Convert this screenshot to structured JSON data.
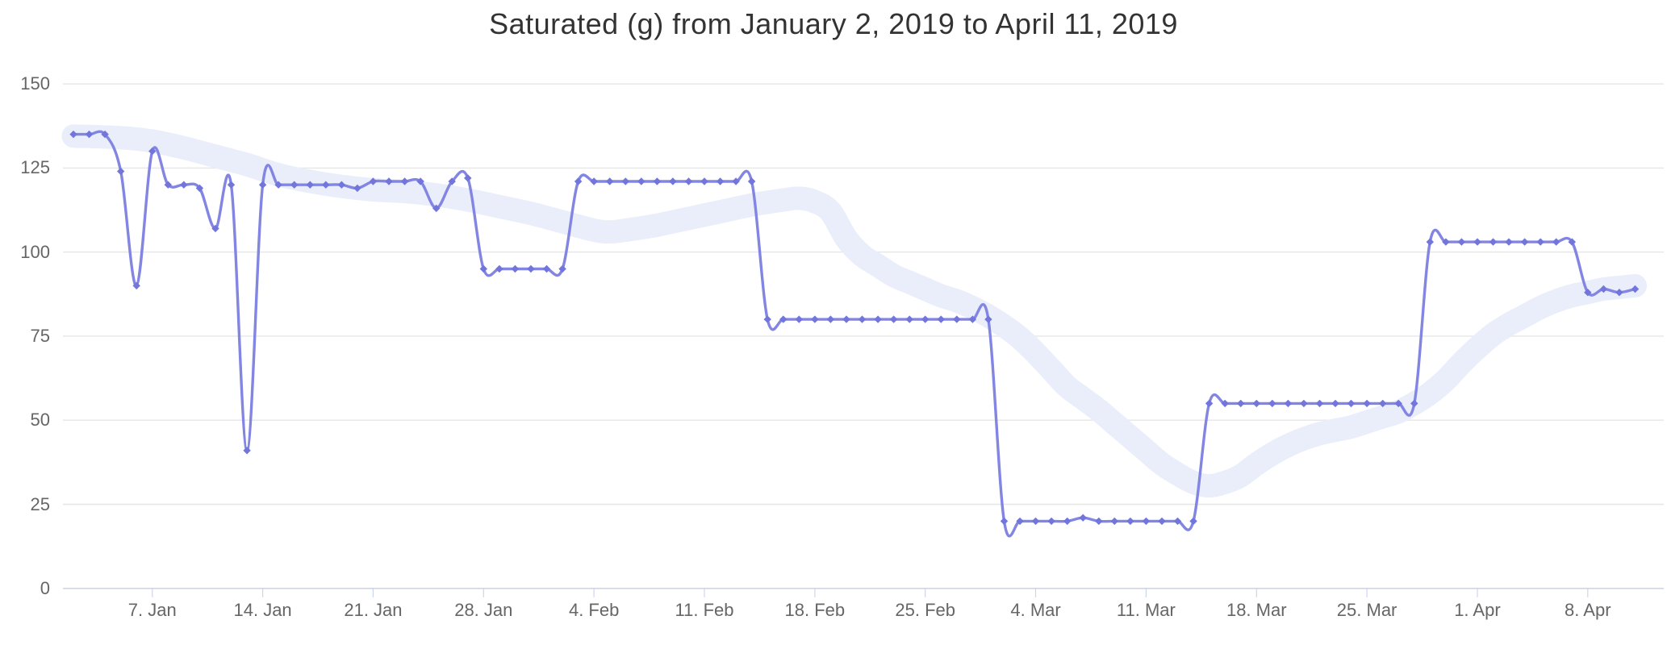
{
  "title": "Saturated (g) from January 2, 2019 to April 11, 2019",
  "colors": {
    "background": "#ffffff",
    "title_text": "#333333",
    "axis_label_text": "#666666",
    "gridline": "#e6e6e6",
    "axis_line": "#ccd6eb",
    "series_line": "#8285e2",
    "series_marker": "#7276dc",
    "trend_band": "#e9eefa"
  },
  "chart_data": {
    "type": "line",
    "title": "Saturated (g) from January 2, 2019 to April 11, 2019",
    "legend": "none",
    "x_axis": {
      "label": "",
      "start_date": "2019-01-02",
      "end_date": "2019-04-11",
      "frequency": "daily",
      "num_points": 100,
      "tick_labels": [
        "7. Jan",
        "14. Jan",
        "21. Jan",
        "28. Jan",
        "4. Feb",
        "11. Feb",
        "18. Feb",
        "25. Feb",
        "4. Mar",
        "11. Mar",
        "18. Mar",
        "25. Mar",
        "1. Apr",
        "8. Apr"
      ],
      "tick_day_indices": [
        5,
        12,
        19,
        26,
        33,
        40,
        47,
        54,
        61,
        68,
        75,
        82,
        89,
        96
      ]
    },
    "y_axis": {
      "label": "",
      "min": 0,
      "max": 150,
      "tick_values": [
        0,
        25,
        50,
        75,
        100,
        125,
        150
      ],
      "grid": true
    },
    "series": [
      {
        "name": "Saturated (g)",
        "type": "spline",
        "color": "#8285e2",
        "marker_shape": "diamond",
        "marker_color": "#7276dc",
        "values": [
          135,
          135,
          135,
          124,
          90,
          130,
          120,
          120,
          119,
          107,
          120,
          41,
          120,
          120,
          120,
          120,
          120,
          120,
          119,
          121,
          121,
          121,
          121,
          113,
          121,
          122,
          95,
          95,
          95,
          95,
          95,
          95,
          121,
          121,
          121,
          121,
          121,
          121,
          121,
          121,
          121,
          121,
          121,
          121,
          80,
          80,
          80,
          80,
          80,
          80,
          80,
          80,
          80,
          80,
          80,
          80,
          80,
          80,
          80,
          20,
          20,
          20,
          20,
          20,
          21,
          20,
          20,
          20,
          20,
          20,
          20,
          20,
          55,
          55,
          55,
          55,
          55,
          55,
          55,
          55,
          55,
          55,
          55,
          55,
          55,
          55,
          103,
          103,
          103,
          103,
          103,
          103,
          103,
          103,
          103,
          103,
          88,
          89,
          88,
          89
        ]
      },
      {
        "name": "trend-band",
        "type": "smoothed-band",
        "color": "#e9eefa",
        "points": [
          [
            0,
            134.5
          ],
          [
            3,
            134
          ],
          [
            5,
            133
          ],
          [
            7,
            131
          ],
          [
            9,
            128.5
          ],
          [
            11,
            126
          ],
          [
            13,
            123
          ],
          [
            15,
            121
          ],
          [
            17,
            119.5
          ],
          [
            19,
            118.5
          ],
          [
            21,
            118
          ],
          [
            23,
            117
          ],
          [
            25,
            115.5
          ],
          [
            27,
            113.5
          ],
          [
            29,
            111.5
          ],
          [
            31,
            109
          ],
          [
            33,
            106.5
          ],
          [
            34,
            106
          ],
          [
            35,
            106.5
          ],
          [
            37,
            108
          ],
          [
            39,
            110
          ],
          [
            41,
            112
          ],
          [
            43,
            114
          ],
          [
            45,
            115.5
          ],
          [
            46,
            116
          ],
          [
            47,
            115
          ],
          [
            48,
            112
          ],
          [
            49,
            104
          ],
          [
            50,
            99
          ],
          [
            51,
            96
          ],
          [
            52,
            93
          ],
          [
            53,
            91
          ],
          [
            54,
            89
          ],
          [
            55,
            87
          ],
          [
            56,
            85.5
          ],
          [
            57,
            83.5
          ],
          [
            58,
            81
          ],
          [
            59,
            78
          ],
          [
            60,
            74.5
          ],
          [
            61,
            70
          ],
          [
            62,
            65
          ],
          [
            63,
            60
          ],
          [
            64,
            56.5
          ],
          [
            65,
            53
          ],
          [
            66,
            49
          ],
          [
            67,
            45
          ],
          [
            68,
            41
          ],
          [
            69,
            37
          ],
          [
            70,
            34
          ],
          [
            71,
            31.5
          ],
          [
            72,
            30.5
          ],
          [
            73,
            31.5
          ],
          [
            74,
            33.5
          ],
          [
            75,
            37
          ],
          [
            76,
            40
          ],
          [
            77,
            42.5
          ],
          [
            78,
            44.5
          ],
          [
            79,
            46
          ],
          [
            80,
            47
          ],
          [
            81,
            48
          ],
          [
            82,
            49.5
          ],
          [
            83,
            51
          ],
          [
            84,
            52.5
          ],
          [
            85,
            55
          ],
          [
            86,
            58
          ],
          [
            87,
            62
          ],
          [
            88,
            67
          ],
          [
            89,
            71.5
          ],
          [
            90,
            75.5
          ],
          [
            91,
            78.5
          ],
          [
            92,
            81
          ],
          [
            93,
            83.5
          ],
          [
            94,
            85.5
          ],
          [
            95,
            87
          ],
          [
            96,
            88
          ],
          [
            97,
            89
          ],
          [
            98,
            89.5
          ],
          [
            99,
            90
          ]
        ]
      }
    ]
  }
}
